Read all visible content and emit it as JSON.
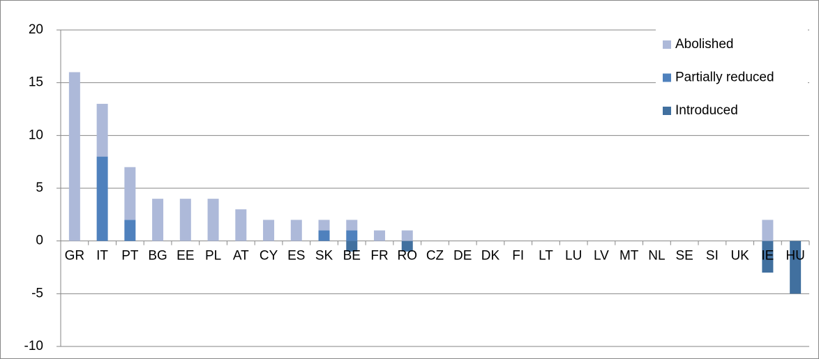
{
  "chart_data": {
    "type": "bar",
    "stacked": true,
    "categories": [
      "GR",
      "IT",
      "PT",
      "BG",
      "EE",
      "PL",
      "AT",
      "CY",
      "ES",
      "SK",
      "BE",
      "FR",
      "RO",
      "CZ",
      "DE",
      "DK",
      "FI",
      "LT",
      "LU",
      "LV",
      "MT",
      "NL",
      "SE",
      "SI",
      "UK",
      "IE",
      "HU"
    ],
    "series": [
      {
        "name": "Abolished",
        "color": "#adb9d9",
        "values": [
          16,
          5,
          5,
          4,
          4,
          4,
          3,
          2,
          2,
          1,
          1,
          1,
          1,
          0,
          0,
          0,
          0,
          0,
          0,
          0,
          0,
          0,
          0,
          0,
          0,
          2,
          0
        ]
      },
      {
        "name": "Partially reduced",
        "color": "#4f81bd",
        "values": [
          0,
          8,
          2,
          0,
          0,
          0,
          0,
          0,
          0,
          1,
          1,
          0,
          0,
          0,
          0,
          0,
          0,
          0,
          0,
          0,
          0,
          0,
          0,
          0,
          0,
          0,
          0
        ]
      },
      {
        "name": "Introduced",
        "color": "#41709f",
        "values": [
          0,
          0,
          0,
          0,
          0,
          0,
          0,
          0,
          0,
          0,
          -1,
          0,
          -1,
          0,
          0,
          0,
          0,
          0,
          0,
          0,
          0,
          0,
          0,
          0,
          0,
          -3,
          -5
        ]
      }
    ],
    "ylim": [
      -10,
      20
    ],
    "yticks": [
      -10,
      -5,
      0,
      5,
      10,
      15,
      20
    ],
    "grid": true,
    "legend": "top-right"
  }
}
